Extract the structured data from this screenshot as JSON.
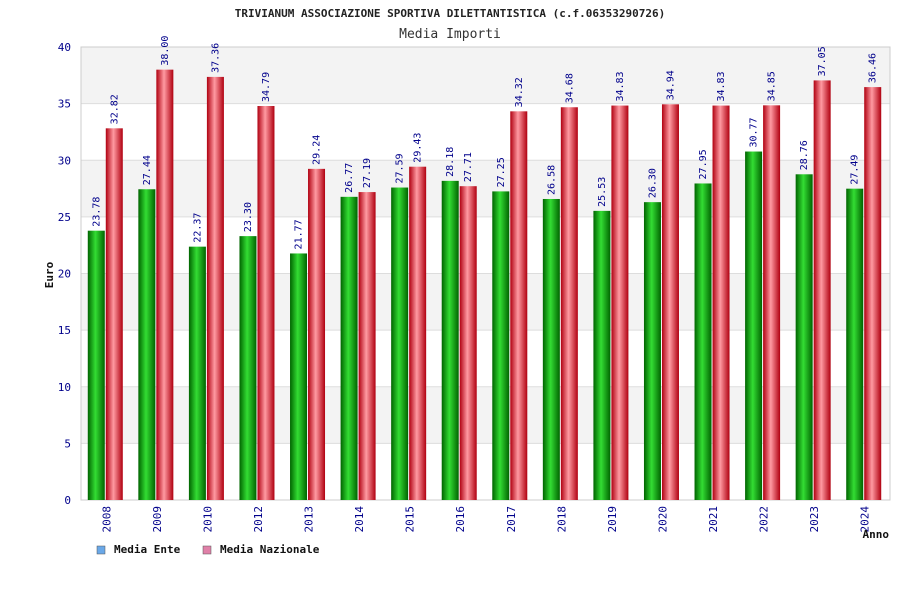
{
  "chart_data": {
    "type": "bar",
    "title": "TRIVIANUM ASSOCIAZIONE SPORTIVA DILETTANTISTICA (c.f.06353290726)",
    "subtitle": "Media Importi",
    "xlabel": "Anno",
    "ylabel": "Euro",
    "ylim": [
      0,
      40
    ],
    "yticks": [
      0,
      5,
      10,
      15,
      20,
      25,
      30,
      35,
      40
    ],
    "categories": [
      "2008",
      "2009",
      "2010",
      "2012",
      "2013",
      "2014",
      "2015",
      "2016",
      "2017",
      "2018",
      "2019",
      "2020",
      "2021",
      "2022",
      "2023",
      "2024"
    ],
    "series": [
      {
        "name": "Media Ente",
        "color": "#00a000",
        "legend_color": "#6aa8e8",
        "values": [
          23.78,
          27.44,
          22.37,
          23.3,
          21.77,
          26.77,
          27.59,
          28.18,
          27.25,
          26.58,
          25.53,
          26.3,
          27.95,
          30.77,
          28.76,
          27.49
        ],
        "labels": [
          "23.78",
          "27.44",
          "22.37",
          "23.30",
          "21.77",
          "26.77",
          "27.59",
          "28.18",
          "27.25",
          "26.58",
          "25.53",
          "26.30",
          "27.95",
          "30.77",
          "28.76",
          "27.49"
        ]
      },
      {
        "name": "Media Nazionale",
        "color": "#e00010",
        "legend_color": "#e080a8",
        "values": [
          32.82,
          38.0,
          37.36,
          34.79,
          29.24,
          27.19,
          29.43,
          27.71,
          34.32,
          34.68,
          34.83,
          34.94,
          34.83,
          34.85,
          37.05,
          36.46
        ],
        "labels": [
          "32.82",
          "38.00",
          "37.36",
          "34.79",
          "29.24",
          "27.19",
          "29.43",
          "27.71",
          "34.32",
          "34.68",
          "34.83",
          "34.94",
          "34.83",
          "34.85",
          "37.05",
          "36.46"
        ]
      }
    ],
    "grid": true,
    "legend_position": "bottom-left"
  }
}
